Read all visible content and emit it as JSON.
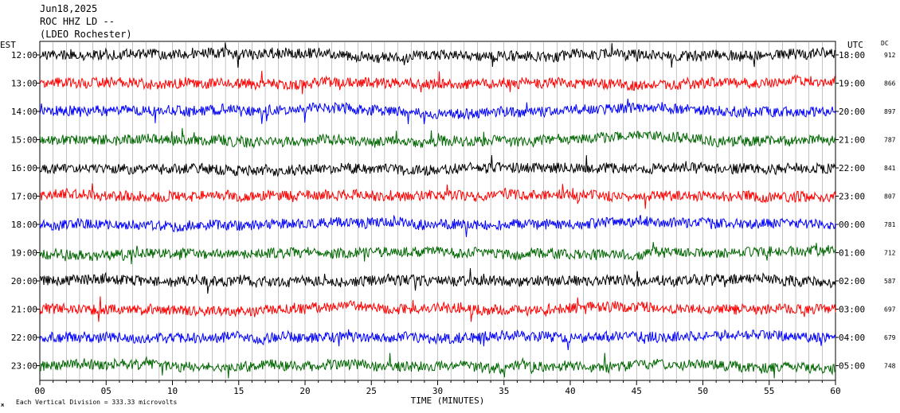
{
  "header": {
    "date": "Jun18,2025",
    "station": "ROC HHZ LD --",
    "location": "(LDEO Rochester)"
  },
  "left_tz": "EST",
  "right_tz": "UTC",
  "dc_label": "DC",
  "footer": {
    "mark": "ж",
    "scale_note": "Each Vertical Division =  333.33 microvolts"
  },
  "colors": {
    "black": "#000000",
    "red": "#ff0000",
    "blue": "#0000ff",
    "green": "#006600"
  },
  "chart_data": {
    "type": "line",
    "xlabel": "TIME (MINUTES)",
    "xlim": [
      0,
      60
    ],
    "x_ticks": [
      {
        "value": 0,
        "label": "00"
      },
      {
        "value": 5,
        "label": "05"
      },
      {
        "value": 10,
        "label": "10"
      },
      {
        "value": 15,
        "label": "15"
      },
      {
        "value": 20,
        "label": "20"
      },
      {
        "value": 25,
        "label": "25"
      },
      {
        "value": 30,
        "label": "30"
      },
      {
        "value": 35,
        "label": "35"
      },
      {
        "value": 40,
        "label": "40"
      },
      {
        "value": 45,
        "label": "45"
      },
      {
        "value": 50,
        "label": "50"
      },
      {
        "value": 55,
        "label": "55"
      },
      {
        "value": 60,
        "label": "60"
      }
    ],
    "rows": [
      {
        "est": "12:00",
        "utc": "18:00",
        "dc": "912",
        "color": "#000000"
      },
      {
        "est": "13:00",
        "utc": "19:00",
        "dc": "866",
        "color": "#ff0000"
      },
      {
        "est": "14:00",
        "utc": "20:00",
        "dc": "897",
        "color": "#0000ff"
      },
      {
        "est": "15:00",
        "utc": "21:00",
        "dc": "787",
        "color": "#006600"
      },
      {
        "est": "16:00",
        "utc": "22:00",
        "dc": "841",
        "color": "#000000"
      },
      {
        "est": "17:00",
        "utc": "23:00",
        "dc": "807",
        "color": "#ff0000"
      },
      {
        "est": "18:00",
        "utc": "00:00",
        "dc": "781",
        "color": "#0000ff"
      },
      {
        "est": "19:00",
        "utc": "01:00",
        "dc": "712",
        "color": "#006600"
      },
      {
        "est": "20:00",
        "utc": "02:00",
        "dc": "587",
        "color": "#000000"
      },
      {
        "est": "21:00",
        "utc": "03:00",
        "dc": "697",
        "color": "#ff0000"
      },
      {
        "est": "22:00",
        "utc": "04:00",
        "dc": "679",
        "color": "#0000ff"
      },
      {
        "est": "23:00",
        "utc": "05:00",
        "dc": "748",
        "color": "#006600"
      }
    ]
  }
}
